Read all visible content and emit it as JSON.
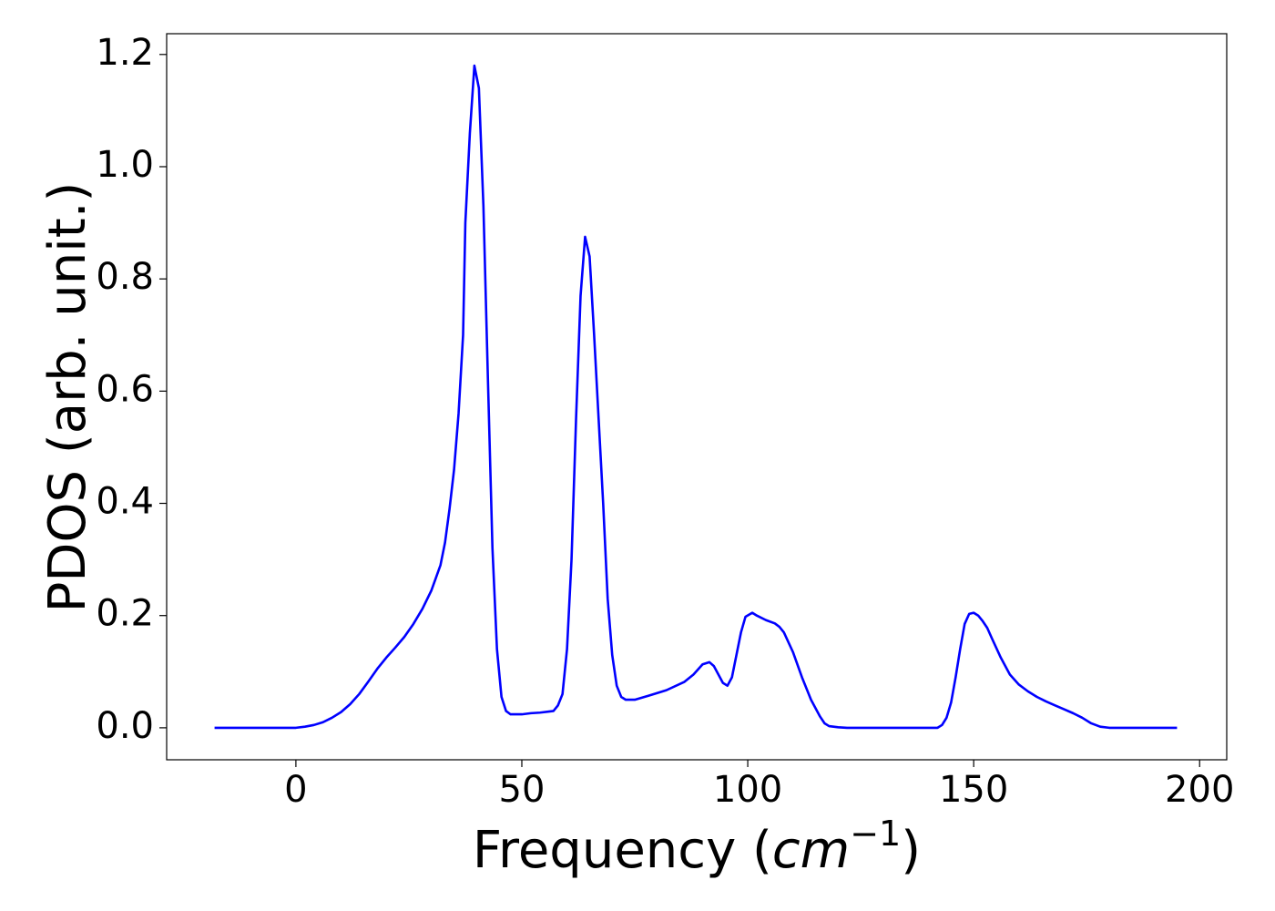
{
  "chart_data": {
    "type": "line",
    "x_label": [
      "Frequency (",
      "cm",
      "−1",
      ")"
    ],
    "y_label": "PDOS (arb. unit.)",
    "x": [
      -18,
      -10,
      0,
      2,
      4,
      6,
      8,
      10,
      12,
      14,
      16,
      18,
      20,
      22,
      24,
      26,
      28,
      30,
      32,
      33,
      34,
      35,
      36,
      37,
      37.5,
      38.5,
      39.5,
      40.5,
      41.5,
      42.5,
      43.5,
      44.5,
      45.5,
      46.5,
      47.5,
      50,
      52,
      54,
      56,
      57,
      58,
      59,
      60,
      61,
      62,
      63,
      64,
      65,
      66,
      67,
      68,
      69,
      70,
      71,
      72,
      73,
      75,
      78,
      82,
      86,
      88,
      90,
      91.5,
      92.5,
      93.5,
      94.5,
      95.5,
      96.5,
      97.5,
      98.5,
      99.5,
      101,
      102,
      104,
      106,
      107,
      108,
      110,
      112,
      114,
      116,
      117,
      118,
      120,
      122,
      142,
      143,
      144,
      145,
      146,
      147,
      148,
      149,
      150,
      151,
      152,
      153,
      154,
      156,
      158,
      160,
      162,
      164,
      166,
      168,
      170,
      172,
      174,
      176,
      178,
      180,
      195
    ],
    "series": [
      {
        "color": "#0000ff",
        "values": [
          0,
          0,
          0,
          0.002,
          0.005,
          0.01,
          0.018,
          0.028,
          0.042,
          0.06,
          0.082,
          0.105,
          0.125,
          0.143,
          0.162,
          0.185,
          0.212,
          0.245,
          0.29,
          0.33,
          0.39,
          0.46,
          0.56,
          0.7,
          0.9,
          1.06,
          1.18,
          1.14,
          0.93,
          0.62,
          0.32,
          0.14,
          0.055,
          0.03,
          0.024,
          0.024,
          0.026,
          0.027,
          0.029,
          0.03,
          0.04,
          0.06,
          0.14,
          0.3,
          0.55,
          0.77,
          0.875,
          0.84,
          0.7,
          0.55,
          0.4,
          0.23,
          0.13,
          0.075,
          0.055,
          0.05,
          0.05,
          0.057,
          0.067,
          0.082,
          0.095,
          0.113,
          0.117,
          0.11,
          0.095,
          0.08,
          0.075,
          0.09,
          0.13,
          0.17,
          0.198,
          0.205,
          0.2,
          0.192,
          0.186,
          0.18,
          0.17,
          0.135,
          0.09,
          0.05,
          0.02,
          0.008,
          0.003,
          0.001,
          0,
          0,
          0.005,
          0.018,
          0.045,
          0.09,
          0.14,
          0.185,
          0.203,
          0.205,
          0.2,
          0.19,
          0.178,
          0.16,
          0.125,
          0.095,
          0.077,
          0.065,
          0.055,
          0.047,
          0.04,
          0.033,
          0.026,
          0.018,
          0.008,
          0.002,
          0,
          0
        ]
      }
    ],
    "xlim": [
      -28.6,
      206
    ],
    "ylim": [
      -0.057,
      1.237
    ],
    "xticks": [
      0,
      50,
      100,
      150,
      200
    ],
    "yticks": [
      {
        "value": 0,
        "label": "0.0"
      },
      0.2,
      0.4,
      0.6,
      0.8,
      {
        "value": 1,
        "label": "1.0"
      },
      1.2
    ]
  }
}
